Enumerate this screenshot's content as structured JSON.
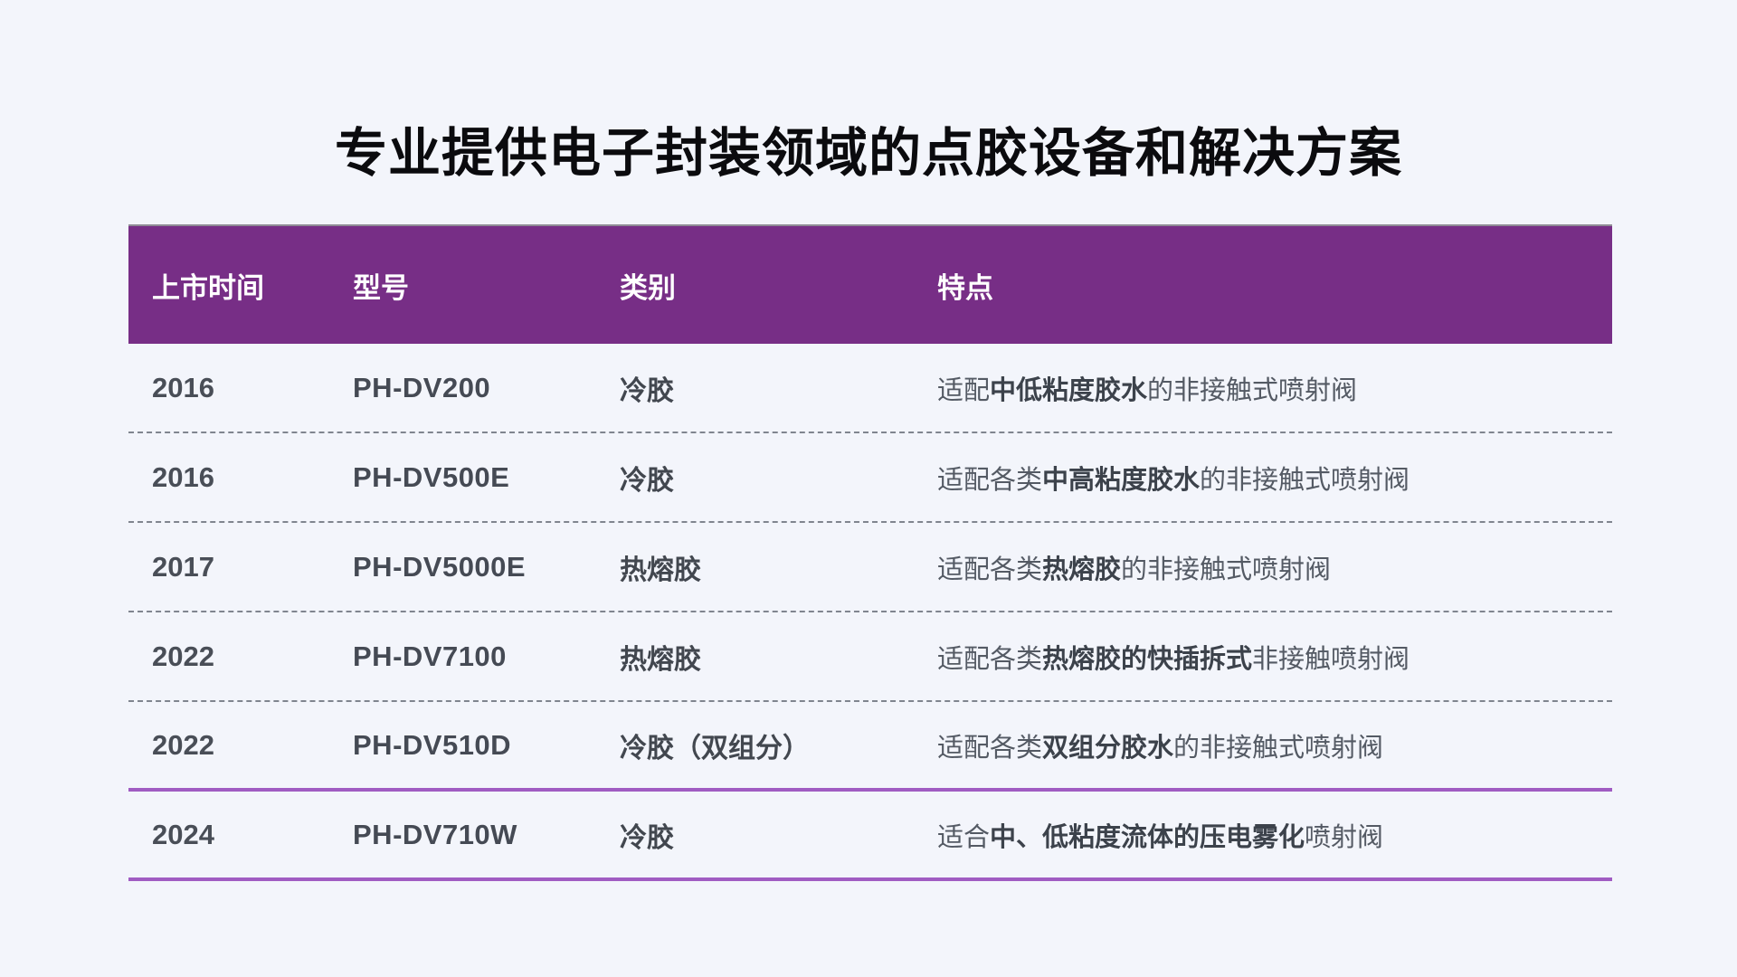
{
  "title": "专业提供电子封装领域的点胶设备和解决方案",
  "colors": {
    "page_bg": "#f3f5fb",
    "header_bg": "#772e86",
    "header_text": "#ffffff",
    "accent_line": "#a05cc2",
    "dashed_line": "#80858f",
    "year_text": "#494e57",
    "feature_text": "#545a64"
  },
  "table": {
    "columns": [
      {
        "key": "year",
        "label": "上市时间"
      },
      {
        "key": "model",
        "label": "型号"
      },
      {
        "key": "category",
        "label": "类别"
      },
      {
        "key": "feature",
        "label": "特点"
      }
    ],
    "rows": [
      {
        "year": "2016",
        "model": "PH-DV200",
        "category": "冷胶",
        "feature": [
          {
            "t": "适配",
            "b": false
          },
          {
            "t": "中低粘度胶水",
            "b": true
          },
          {
            "t": "的非接触式喷射阀",
            "b": false
          }
        ],
        "separator": "dashed"
      },
      {
        "year": "2016",
        "model": "PH-DV500E",
        "category": "冷胶",
        "feature": [
          {
            "t": "适配各类",
            "b": false
          },
          {
            "t": "中高粘度胶水",
            "b": true
          },
          {
            "t": "的非接触式喷射阀",
            "b": false
          }
        ],
        "separator": "dashed"
      },
      {
        "year": "2017",
        "model": "PH-DV5000E",
        "category": "热熔胶",
        "feature": [
          {
            "t": "适配各类",
            "b": false
          },
          {
            "t": "热熔胶",
            "b": true
          },
          {
            "t": "的非接触式喷射阀",
            "b": false
          }
        ],
        "separator": "dashed"
      },
      {
        "year": "2022",
        "model": "PH-DV7100",
        "category": "热熔胶",
        "feature": [
          {
            "t": "适配各类",
            "b": false
          },
          {
            "t": "热熔胶的快插拆式",
            "b": true
          },
          {
            "t": "非接触喷射阀",
            "b": false
          }
        ],
        "separator": "dashed"
      },
      {
        "year": "2022",
        "model": "PH-DV510D",
        "category": "冷胶（双组分）",
        "feature": [
          {
            "t": "适配各类",
            "b": false
          },
          {
            "t": "双组分胶水",
            "b": true
          },
          {
            "t": "的非接触式喷射阀",
            "b": false
          }
        ],
        "separator": "accent"
      },
      {
        "year": "2024",
        "model": "PH-DV710W",
        "category": "冷胶",
        "feature": [
          {
            "t": "适合",
            "b": false
          },
          {
            "t": "中、低粘度流体的压电雾化",
            "b": true
          },
          {
            "t": "喷射阀",
            "b": false
          }
        ],
        "separator": "accent"
      }
    ]
  }
}
